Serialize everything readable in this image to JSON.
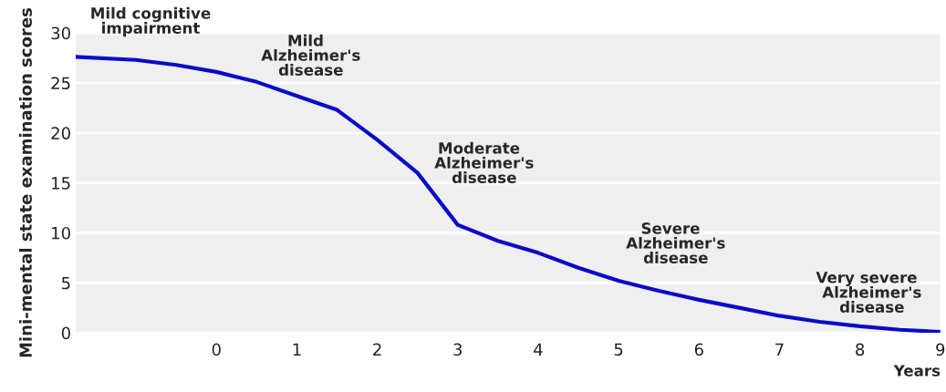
{
  "chart_data": {
    "type": "line",
    "xlabel": "Years",
    "ylabel": "Mini-mental state examination scores",
    "x": [
      -1.75,
      -1,
      -0.5,
      0,
      0.5,
      1,
      1.5,
      2,
      2.5,
      3,
      3.5,
      4,
      4.5,
      5,
      5.5,
      6,
      6.5,
      7,
      7.5,
      8,
      8.5,
      9
    ],
    "series": [
      {
        "color": "#0a0ac8",
        "values": [
          27.6,
          27.3,
          26.8,
          26.1,
          25.1,
          23.7,
          22.3,
          19.3,
          16.0,
          10.8,
          9.2,
          8.0,
          6.5,
          5.2,
          4.2,
          3.3,
          2.5,
          1.7,
          1.1,
          0.65,
          0.3,
          0.1
        ]
      }
    ],
    "xlim": [
      -1.75,
      9
    ],
    "xticks": [
      0,
      1,
      2,
      3,
      4,
      5,
      6,
      7,
      8,
      9
    ],
    "ylim": [
      0,
      30
    ],
    "yticks": [
      0,
      5,
      10,
      15,
      20,
      25,
      30
    ],
    "grid": "y",
    "marker": "none",
    "line_style": "solid",
    "annotations": [
      "Mild cognitive\nimpairment",
      "Mild\n  Alzheimer's\n  disease",
      "Moderate\n  Alzheimer's\n  disease",
      "Severe\n  Alzheimer's\n  disease",
      "Very severe\n  Alzheimer's\n  disease"
    ]
  }
}
